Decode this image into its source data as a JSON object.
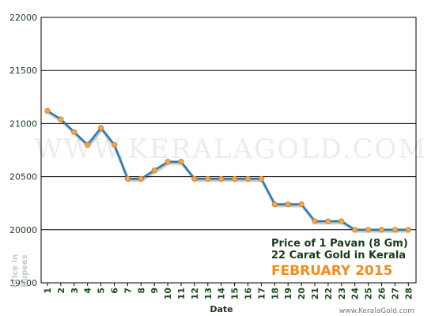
{
  "chart_data": {
    "type": "line",
    "title_line1": "Price of 1 Pavan (8 Gm)",
    "title_line2": "22 Carat Gold in Kerala",
    "month_label": "FEBRUARY 2015",
    "xlabel": "Date",
    "ylabel_line1": "Price in",
    "ylabel_line2": "Rupees",
    "watermark": "WWW.KERALAGOLD.COM",
    "site_label": "www.KeralaGold.com",
    "ylim": [
      19500,
      22000
    ],
    "yticks": [
      19500,
      20000,
      20500,
      21000,
      21500,
      22000
    ],
    "x": [
      "1",
      "2",
      "3",
      "4",
      "5",
      "6",
      "7",
      "8",
      "9",
      "10",
      "11",
      "12",
      "13",
      "14",
      "15",
      "16",
      "17",
      "18",
      "19",
      "20",
      "21",
      "22",
      "23",
      "24",
      "25",
      "26",
      "27",
      "28"
    ],
    "values": [
      21120,
      21040,
      20920,
      20800,
      20960,
      20800,
      20480,
      20480,
      20560,
      20640,
      20640,
      20480,
      20480,
      20480,
      20480,
      20480,
      20480,
      20240,
      20240,
      20240,
      20080,
      20080,
      20080,
      20000,
      20000,
      20000,
      20000,
      20000
    ],
    "line_color": "#2a7aa8",
    "marker_color": "#f5a54a",
    "grid": true
  }
}
